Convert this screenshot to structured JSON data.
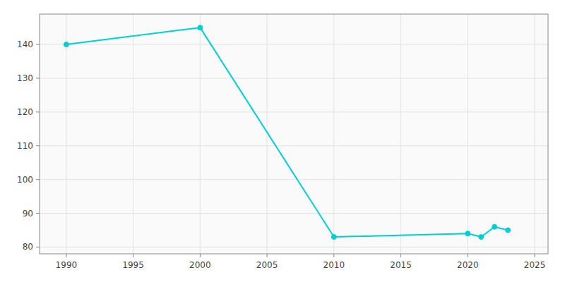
{
  "chart_data": {
    "type": "line",
    "x": [
      1990,
      2000,
      2010,
      2020,
      2021,
      2022,
      2023
    ],
    "values": [
      140,
      145,
      83,
      84,
      83,
      86,
      85
    ],
    "color": "#00CED1",
    "marker": "circle",
    "xlim": [
      1988,
      2026
    ],
    "ylim": [
      78,
      149
    ],
    "xticks": [
      1990,
      1995,
      2000,
      2005,
      2010,
      2015,
      2020,
      2025
    ],
    "yticks": [
      80,
      90,
      100,
      110,
      120,
      130,
      140
    ],
    "grid": true
  }
}
